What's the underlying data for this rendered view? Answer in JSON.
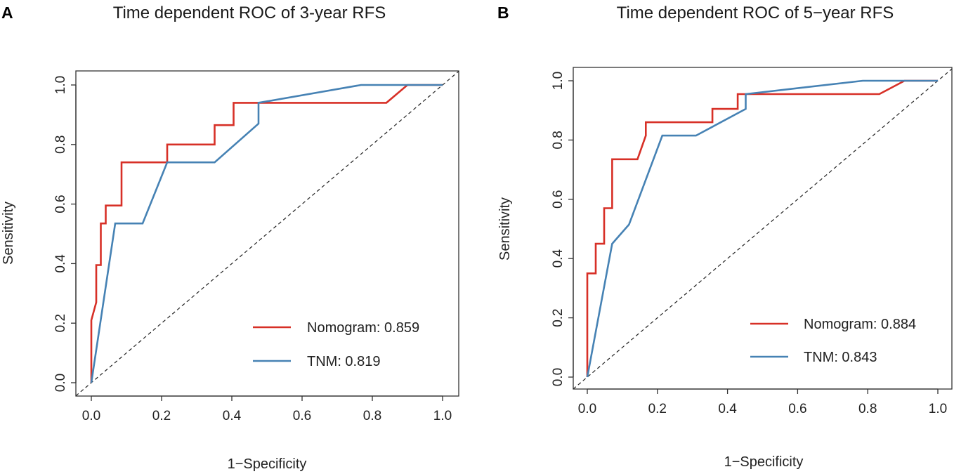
{
  "chart_data": [
    {
      "type": "line",
      "panel": "A",
      "title": "Time dependent ROC of 3-year RFS",
      "xlabel": "1−Specificity",
      "ylabel": "Sensitivity",
      "xlim": [
        0,
        1
      ],
      "ylim": [
        0,
        1
      ],
      "x_ticks": [
        "0.0",
        "0.2",
        "0.4",
        "0.6",
        "0.8",
        "1.0"
      ],
      "y_ticks": [
        "0.0",
        "0.2",
        "0.4",
        "0.6",
        "0.8",
        "1.0"
      ],
      "reference_line": "dashed diagonal",
      "series": [
        {
          "name": "Nomogram",
          "legend": "Nomogram: 0.859",
          "auc": "0.859",
          "color": "#d73027",
          "x": [
            0.0,
            0.0,
            0.014,
            0.014,
            0.027,
            0.027,
            0.041,
            0.041,
            0.086,
            0.086,
            0.216,
            0.216,
            0.351,
            0.351,
            0.405,
            0.405,
            0.84,
            0.9,
            1.0
          ],
          "y": [
            0.0,
            0.21,
            0.27,
            0.395,
            0.395,
            0.535,
            0.535,
            0.595,
            0.595,
            0.74,
            0.74,
            0.8,
            0.8,
            0.865,
            0.865,
            0.94,
            0.94,
            1.0,
            1.0
          ]
        },
        {
          "name": "TNM",
          "legend": "TNM: 0.819",
          "auc": "0.819",
          "color": "#4682b4",
          "x": [
            0.0,
            0.068,
            0.146,
            0.216,
            0.351,
            0.476,
            0.476,
            0.768,
            1.0
          ],
          "y": [
            0.0,
            0.535,
            0.535,
            0.74,
            0.74,
            0.87,
            0.94,
            1.0,
            1.0
          ]
        }
      ]
    },
    {
      "type": "line",
      "panel": "B",
      "title": "Time dependent ROC of 5−year RFS",
      "xlabel": "1−Specificity",
      "ylabel": "Sensitivity",
      "xlim": [
        0,
        1
      ],
      "ylim": [
        0,
        1
      ],
      "x_ticks": [
        "0.0",
        "0.2",
        "0.4",
        "0.6",
        "0.8",
        "1.0"
      ],
      "y_ticks": [
        "0.0",
        "0.2",
        "0.4",
        "0.6",
        "0.8",
        "1.0"
      ],
      "reference_line": "dashed diagonal",
      "series": [
        {
          "name": "Nomogram",
          "legend": "Nomogram: 0.884",
          "auc": "0.884",
          "color": "#d73027",
          "x": [
            0.0,
            0.0,
            0.024,
            0.024,
            0.048,
            0.048,
            0.071,
            0.071,
            0.143,
            0.167,
            0.167,
            0.357,
            0.357,
            0.429,
            0.429,
            0.833,
            0.905,
            1.0
          ],
          "y": [
            0.0,
            0.35,
            0.35,
            0.45,
            0.45,
            0.57,
            0.57,
            0.735,
            0.735,
            0.815,
            0.86,
            0.86,
            0.905,
            0.905,
            0.955,
            0.955,
            1.0,
            1.0
          ]
        },
        {
          "name": "TNM",
          "legend": "TNM: 0.843",
          "auc": "0.843",
          "color": "#4682b4",
          "x": [
            0.0,
            0.071,
            0.119,
            0.214,
            0.31,
            0.452,
            0.452,
            0.786,
            1.0
          ],
          "y": [
            0.0,
            0.45,
            0.515,
            0.815,
            0.815,
            0.905,
            0.955,
            1.0,
            1.0
          ]
        }
      ]
    }
  ]
}
